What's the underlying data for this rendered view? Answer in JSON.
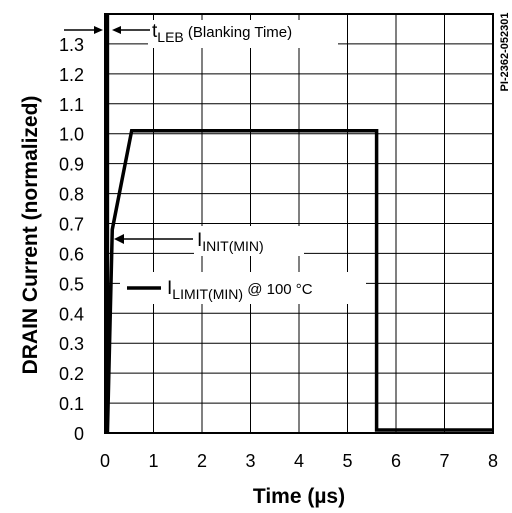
{
  "chart_data": {
    "type": "line",
    "xlabel": "Time (µs)",
    "ylabel": "DRAIN Current (normalized)",
    "xlim": [
      0,
      8
    ],
    "ylim": [
      0,
      1.4
    ],
    "x_ticks": [
      "0",
      "1",
      "2",
      "3",
      "4",
      "5",
      "6",
      "7",
      "8"
    ],
    "y_ticks": [
      "0",
      "0.1",
      "0.2",
      "0.3",
      "0.4",
      "0.5",
      "0.6",
      "0.7",
      "0.8",
      "0.9",
      "1.0",
      "1.1",
      "1.2",
      "1.3"
    ],
    "grid": true,
    "series": [
      {
        "x": [
          0.05,
          0.05,
          0.15,
          0.55,
          5.6,
          5.6,
          8.0
        ],
        "y": [
          1.4,
          0.0,
          0.68,
          1.01,
          1.01,
          0.01,
          0.01
        ]
      }
    ],
    "annotations": {
      "leb": {
        "main": "t",
        "sub": "LEB",
        "rest": " (Blanking Time)"
      },
      "init": {
        "main": "I",
        "sub": "INIT(MIN)"
      },
      "limit": {
        "main": "I",
        "sub": "LIMIT(MIN)",
        "rest": " @ 100 °C"
      }
    },
    "figure_id": "PI-2362-052301"
  }
}
